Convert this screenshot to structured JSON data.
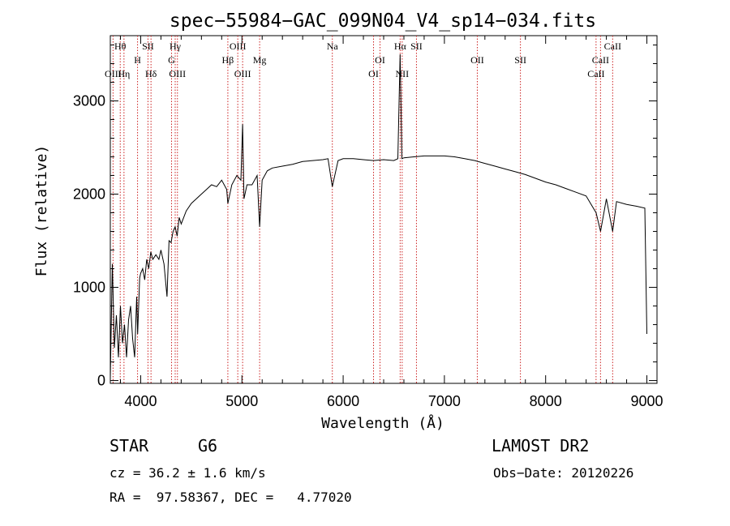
{
  "chart_data": {
    "type": "line",
    "title": "spec−55984−GAC_099N04_V4_sp14−034.fits",
    "xlabel": "Wavelength (Å)",
    "ylabel": "Flux (relative)",
    "xlim": [
      3700,
      9100
    ],
    "ylim": [
      -30,
      3700
    ],
    "x_ticks": [
      4000,
      5000,
      6000,
      7000,
      8000,
      9000
    ],
    "y_ticks": [
      0,
      1000,
      2000,
      3000
    ],
    "grid": false,
    "series": [
      {
        "x": [
          3700,
          3720,
          3740,
          3760,
          3780,
          3800,
          3820,
          3840,
          3860,
          3880,
          3900,
          3920,
          3940,
          3960,
          3970,
          3990,
          4000,
          4020,
          4040,
          4060,
          4080,
          4100,
          4120,
          4150,
          4180,
          4200,
          4230,
          4260,
          4280,
          4300,
          4320,
          4340,
          4360,
          4380,
          4400,
          4450,
          4500,
          4550,
          4600,
          4650,
          4700,
          4750,
          4800,
          4850,
          4861,
          4900,
          4950,
          4990,
          5007,
          5020,
          5050,
          5100,
          5150,
          5175,
          5200,
          5250,
          5300,
          5400,
          5500,
          5600,
          5700,
          5800,
          5850,
          5893,
          5950,
          6000,
          6100,
          6200,
          6300,
          6400,
          6500,
          6540,
          6563,
          6580,
          6600,
          6700,
          6800,
          6900,
          7000,
          7100,
          7200,
          7300,
          7400,
          7500,
          7600,
          7700,
          7800,
          7900,
          8000,
          8100,
          8200,
          8300,
          8400,
          8498,
          8542,
          8600,
          8662,
          8700,
          8800,
          8900,
          8980,
          9000
        ],
        "y": [
          30,
          1250,
          350,
          700,
          250,
          800,
          400,
          600,
          250,
          650,
          800,
          450,
          250,
          900,
          500,
          1100,
          1150,
          1200,
          1080,
          1300,
          1200,
          1380,
          1300,
          1350,
          1300,
          1400,
          1250,
          900,
          1500,
          1480,
          1600,
          1650,
          1550,
          1750,
          1680,
          1820,
          1900,
          1950,
          2000,
          2050,
          2100,
          2080,
          2150,
          2050,
          1900,
          2100,
          2200,
          2150,
          2750,
          1950,
          2100,
          2100,
          2200,
          1650,
          2150,
          2250,
          2280,
          2300,
          2320,
          2350,
          2360,
          2370,
          2380,
          2080,
          2360,
          2380,
          2380,
          2370,
          2360,
          2370,
          2360,
          2380,
          3500,
          2380,
          2390,
          2400,
          2410,
          2410,
          2410,
          2400,
          2380,
          2360,
          2330,
          2300,
          2270,
          2240,
          2210,
          2170,
          2130,
          2100,
          2060,
          2020,
          1980,
          1800,
          1600,
          1950,
          1600,
          1920,
          1890,
          1870,
          1850,
          500
        ]
      }
    ],
    "spectral_lines": [
      {
        "label": "Hθ",
        "x": 3798,
        "row": 1
      },
      {
        "label": "OIII",
        "x": 3727,
        "row": 3
      },
      {
        "label": "Hη",
        "x": 3835,
        "row": 3
      },
      {
        "label": "H",
        "x": 3969,
        "row": 2
      },
      {
        "label": "SII",
        "x": 4072,
        "row": 1
      },
      {
        "label": "Hδ",
        "x": 4102,
        "row": 3
      },
      {
        "label": "Hγ",
        "x": 4341,
        "row": 1
      },
      {
        "label": "G",
        "x": 4305,
        "row": 2
      },
      {
        "label": "OIII",
        "x": 4363,
        "row": 3
      },
      {
        "label": "OIII",
        "x": 4959,
        "row": 1
      },
      {
        "label": "Hβ",
        "x": 4861,
        "row": 2
      },
      {
        "label": "OIII",
        "x": 5007,
        "row": 3
      },
      {
        "label": "Mg",
        "x": 5175,
        "row": 2
      },
      {
        "label": "Na",
        "x": 5893,
        "row": 1
      },
      {
        "label": "OI",
        "x": 6364,
        "row": 2
      },
      {
        "label": "OI",
        "x": 6300,
        "row": 3
      },
      {
        "label": "Hα",
        "x": 6563,
        "row": 1
      },
      {
        "label": "SII",
        "x": 6724,
        "row": 1
      },
      {
        "label": "NII",
        "x": 6583,
        "row": 3
      },
      {
        "label": "OII",
        "x": 7325,
        "row": 2
      },
      {
        "label": "SII",
        "x": 7751,
        "row": 2
      },
      {
        "label": "CaII",
        "x": 8662,
        "row": 1
      },
      {
        "label": "CaII",
        "x": 8542,
        "row": 2
      },
      {
        "label": "CaII",
        "x": 8498,
        "row": 3
      }
    ],
    "line_marker_color": "#cc2222"
  },
  "footer": {
    "object_class": "STAR",
    "subclass": "G6",
    "survey": "LAMOST DR2",
    "redshift": "cz = 36.2 ± 1.6 km/s",
    "obs_date": "Obs−Date: 20120226",
    "coords": "RA =  97.58367, DEC =   4.77020"
  }
}
